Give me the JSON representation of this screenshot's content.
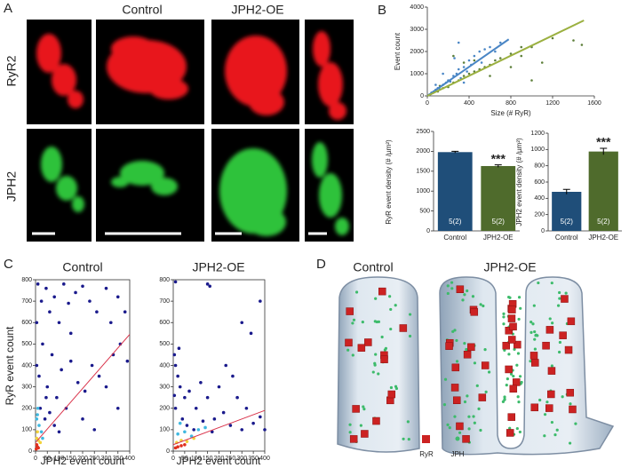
{
  "panels": {
    "A": {
      "letter": "A",
      "columns": [
        "Control",
        "JPH2-OE"
      ],
      "rows": [
        "RyR2",
        "JPH2"
      ]
    },
    "B": {
      "letter": "B"
    },
    "C": {
      "letter": "C"
    },
    "D": {
      "letter": "D",
      "labels": [
        "Control",
        "JPH2-OE"
      ],
      "legend": [
        "RyR",
        "JPH"
      ]
    }
  },
  "chart_data": [
    {
      "type": "scatter",
      "xlabel": "Size (# RyR)",
      "ylabel": "Event count",
      "xlim": [
        0,
        1600
      ],
      "xticks": [
        0,
        400,
        800,
        1200,
        1600
      ],
      "ylim": [
        0,
        4000
      ],
      "yticks": [
        0,
        1000,
        2000,
        3000,
        4000
      ],
      "series": [
        {
          "color": "#4a86c5",
          "x": [
            20,
            40,
            60,
            80,
            100,
            120,
            150,
            180,
            200,
            220,
            250,
            280,
            300,
            320,
            350,
            380,
            400,
            420,
            450,
            500,
            520,
            550,
            600,
            650,
            700,
            260,
            300,
            150,
            80,
            350
          ],
          "values": [
            60,
            150,
            200,
            280,
            350,
            300,
            500,
            600,
            700,
            650,
            900,
            1000,
            1200,
            800,
            1300,
            1100,
            1600,
            1400,
            1800,
            2000,
            1500,
            2100,
            2200,
            2000,
            2400,
            1700,
            2400,
            1000,
            500,
            600
          ]
        },
        {
          "color": "#5d7f3a",
          "x": [
            30,
            60,
            100,
            150,
            200,
            250,
            300,
            350,
            400,
            450,
            500,
            550,
            600,
            650,
            700,
            800,
            900,
            1000,
            1100,
            1200,
            1400,
            1480,
            250,
            350,
            450,
            1000,
            800,
            600,
            900,
            120
          ],
          "values": [
            80,
            150,
            200,
            350,
            400,
            600,
            700,
            900,
            1000,
            1100,
            1200,
            1300,
            1400,
            1600,
            1700,
            1900,
            1800,
            2200,
            1500,
            2600,
            2500,
            2300,
            1800,
            1500,
            1600,
            700,
            1300,
            900,
            2200,
            450
          ]
        }
      ],
      "trendlines": [
        {
          "color": "#4a86c5",
          "x": [
            0,
            780
          ],
          "values": [
            0,
            2550
          ]
        },
        {
          "color": "#9bb040",
          "x": [
            0,
            1500
          ],
          "values": [
            0,
            3400
          ]
        }
      ]
    },
    {
      "type": "bar",
      "ylabel": "RyR event density (# /µm²)",
      "categories": [
        "Control",
        "JPH2-OE"
      ],
      "values": [
        1980,
        1630
      ],
      "errors": [
        20,
        30
      ],
      "colors": [
        "#1f4e79",
        "#4f6b2c"
      ],
      "ylim": [
        0,
        2500
      ],
      "yticks": [
        0,
        500,
        1000,
        1500,
        2000,
        2500
      ],
      "bar_annotations": [
        "5(2)",
        "5(2)"
      ],
      "significance_labels": [
        null,
        "***"
      ]
    },
    {
      "type": "bar",
      "ylabel": "JPH2 event density (# /µm²)",
      "categories": [
        "Control",
        "JPH2-OE"
      ],
      "values": [
        480,
        975
      ],
      "errors": [
        30,
        40
      ],
      "colors": [
        "#1f4e79",
        "#4f6b2c"
      ],
      "ylim": [
        0,
        1200
      ],
      "yticks": [
        0,
        200,
        400,
        600,
        800,
        1000,
        1200
      ],
      "bar_annotations": [
        "5(2)",
        "5(2)"
      ],
      "significance_labels": [
        null,
        "***"
      ]
    },
    {
      "type": "scatter",
      "title": "Control",
      "xlabel": "JPH2 event count",
      "ylabel": "RyR event count",
      "xlim": [
        0,
        400
      ],
      "xticks": [
        0,
        50,
        100,
        150,
        200,
        250,
        300,
        350,
        400
      ],
      "ylim": [
        0,
        800
      ],
      "yticks": [
        0,
        100,
        200,
        300,
        400,
        500,
        600,
        700,
        800
      ],
      "series": [
        {
          "color": "#1a1a8c",
          "x": [
            10,
            25,
            45,
            60,
            80,
            100,
            120,
            140,
            170,
            200,
            230,
            260,
            300,
            320,
            350,
            380,
            5,
            15,
            30,
            50,
            70,
            90,
            110,
            130,
            150,
            180,
            210,
            240,
            270,
            300,
            330,
            360,
            390,
            20,
            40,
            60,
            80,
            100,
            200,
            250,
            350,
            150,
            5,
            45
          ],
          "values": [
            780,
            700,
            760,
            650,
            720,
            600,
            780,
            690,
            740,
            770,
            700,
            650,
            760,
            600,
            720,
            650,
            400,
            350,
            500,
            300,
            450,
            250,
            380,
            200,
            420,
            320,
            280,
            400,
            350,
            300,
            450,
            500,
            420,
            200,
            150,
            180,
            120,
            90,
            150,
            100,
            200,
            550,
            600,
            250
          ]
        },
        {
          "color": "#3fb8e0",
          "x": [
            5,
            15,
            25,
            10,
            30,
            8
          ],
          "values": [
            150,
            120,
            90,
            200,
            60,
            170
          ]
        },
        {
          "color": "#f2d23a",
          "x": [
            5,
            12,
            20,
            8
          ],
          "values": [
            60,
            50,
            40,
            90
          ]
        },
        {
          "color": "#e0301e",
          "x": [
            3,
            8,
            12,
            5
          ],
          "values": [
            10,
            20,
            15,
            30
          ]
        }
      ],
      "trendlines": [
        {
          "color": "#d9324a",
          "x": [
            0,
            400
          ],
          "values": [
            40,
            545
          ]
        }
      ]
    },
    {
      "type": "scatter",
      "title": "JPH2-OE",
      "xlabel": "JPH2 event count",
      "xlim": [
        0,
        400
      ],
      "xticks": [
        0,
        50,
        100,
        150,
        200,
        250,
        300,
        350,
        400
      ],
      "ylim": [
        0,
        800
      ],
      "yticks": [
        0,
        100,
        200,
        300,
        400,
        500,
        600,
        700,
        800
      ],
      "series": [
        {
          "color": "#1a1a8c",
          "x": [
            10,
            150,
            160,
            380,
            300,
            340,
            5,
            10,
            20,
            30,
            50,
            70,
            100,
            120,
            150,
            180,
            200,
            220,
            250,
            280,
            300,
            320,
            350,
            380,
            400,
            40,
            60,
            90,
            130,
            170,
            230,
            260,
            10,
            5,
            25
          ],
          "values": [
            790,
            780,
            770,
            700,
            600,
            550,
            450,
            400,
            350,
            300,
            250,
            280,
            200,
            320,
            250,
            150,
            300,
            180,
            120,
            250,
            100,
            200,
            130,
            160,
            100,
            150,
            120,
            100,
            140,
            90,
            400,
            350,
            200,
            260,
            480
          ]
        },
        {
          "color": "#3fb8e0",
          "x": [
            20,
            50,
            80,
            110,
            140,
            30
          ],
          "values": [
            80,
            90,
            70,
            100,
            110,
            130
          ]
        },
        {
          "color": "#f2d23a",
          "x": [
            15,
            35,
            60,
            90
          ],
          "values": [
            40,
            50,
            45,
            60
          ]
        },
        {
          "color": "#e0301e",
          "x": [
            10,
            20,
            35,
            50
          ],
          "values": [
            15,
            20,
            25,
            30
          ]
        }
      ],
      "trendlines": [
        {
          "color": "#d9324a",
          "x": [
            0,
            400
          ],
          "values": [
            30,
            190
          ]
        }
      ]
    }
  ]
}
